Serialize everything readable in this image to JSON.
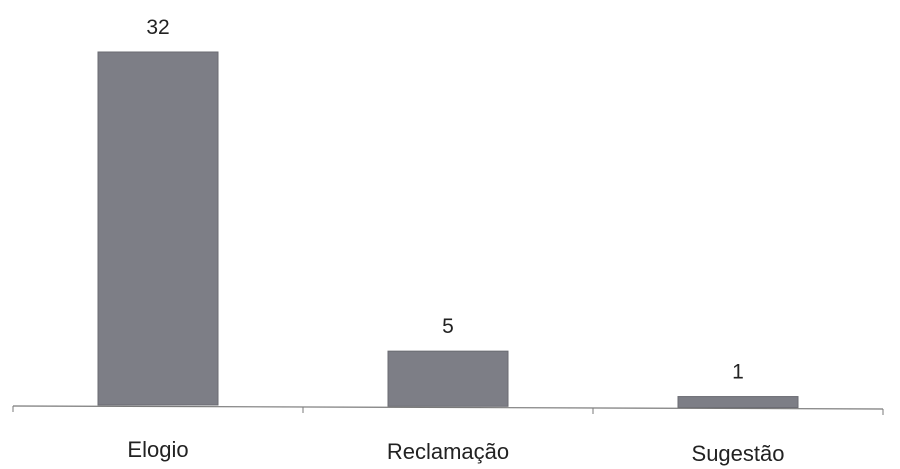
{
  "chart_data": {
    "type": "bar",
    "categories": [
      "Elogio",
      "Reclamação",
      "Sugestão"
    ],
    "values": [
      32,
      5,
      1
    ],
    "title": "",
    "xlabel": "",
    "ylabel": "",
    "ylim": [
      0,
      32
    ],
    "grid": false,
    "legend": "none",
    "bar_color": "#7d7e86"
  }
}
